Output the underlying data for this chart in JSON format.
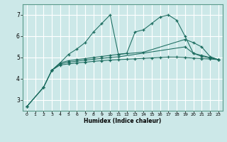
{
  "xlabel": "Humidex (Indice chaleur)",
  "bg_color": "#cce8e8",
  "grid_color": "#ffffff",
  "line_color": "#1a6b5e",
  "xlim": [
    -0.5,
    23.5
  ],
  "ylim": [
    2.5,
    7.5
  ],
  "xticks": [
    0,
    1,
    2,
    3,
    4,
    5,
    6,
    7,
    8,
    9,
    10,
    11,
    12,
    13,
    14,
    15,
    16,
    17,
    18,
    19,
    20,
    21,
    22,
    23
  ],
  "yticks": [
    3,
    4,
    5,
    6,
    7
  ],
  "line1_x": [
    0,
    2,
    3,
    4,
    5,
    6,
    7,
    8,
    9,
    10,
    11,
    12,
    13,
    14,
    15,
    16,
    17,
    18,
    19,
    20,
    21,
    22,
    23
  ],
  "line1_y": [
    2.7,
    3.6,
    4.4,
    4.75,
    5.15,
    5.4,
    5.7,
    6.2,
    6.6,
    7.0,
    5.15,
    5.2,
    6.2,
    6.3,
    6.6,
    6.9,
    7.0,
    6.75,
    6.0,
    5.2,
    5.1,
    5.0,
    4.9
  ],
  "line2_x": [
    0,
    2,
    3,
    4,
    5,
    6,
    7,
    8,
    9,
    10,
    11,
    14,
    19,
    20,
    21,
    22,
    23
  ],
  "line2_y": [
    2.7,
    3.6,
    4.4,
    4.75,
    4.85,
    4.9,
    4.95,
    5.0,
    5.05,
    5.1,
    5.15,
    5.25,
    5.85,
    5.7,
    5.5,
    5.05,
    4.9
  ],
  "line3_x": [
    0,
    2,
    3,
    4,
    5,
    6,
    7,
    8,
    9,
    10,
    11,
    19,
    20,
    21,
    22,
    23
  ],
  "line3_y": [
    2.7,
    3.6,
    4.4,
    4.7,
    4.78,
    4.83,
    4.88,
    4.92,
    4.96,
    5.0,
    5.03,
    5.5,
    5.2,
    5.05,
    4.98,
    4.9
  ],
  "line4_x": [
    3,
    4,
    5,
    6,
    7,
    8,
    9,
    10,
    11,
    12,
    13,
    14,
    15,
    16,
    17,
    18,
    19,
    20,
    21,
    22,
    23
  ],
  "line4_y": [
    4.4,
    4.65,
    4.7,
    4.75,
    4.78,
    4.82,
    4.85,
    4.88,
    4.9,
    4.92,
    4.94,
    4.96,
    4.98,
    5.0,
    5.02,
    5.02,
    5.0,
    4.97,
    4.95,
    4.93,
    4.9
  ]
}
